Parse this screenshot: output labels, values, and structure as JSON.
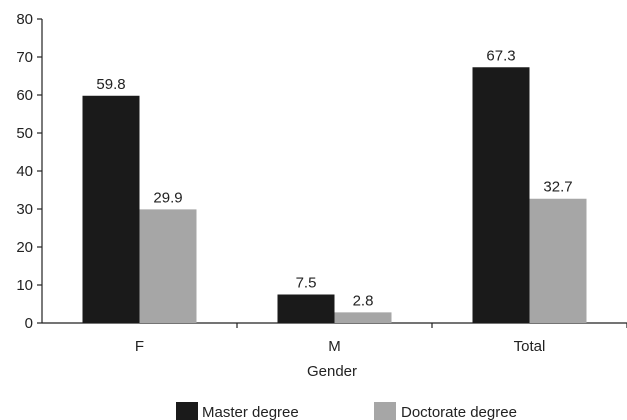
{
  "chart_data": {
    "type": "bar",
    "categories": [
      "F",
      "M",
      "Total"
    ],
    "series": [
      {
        "name": "Master degree",
        "values": [
          59.8,
          7.5,
          67.3
        ],
        "color": "#1a1a1a"
      },
      {
        "name": "Doctorate degree",
        "values": [
          29.9,
          2.8,
          32.7
        ],
        "color": "#a6a6a6"
      }
    ],
    "data_labels": [
      [
        "59.8",
        "7.5",
        "67.3"
      ],
      [
        "29.9",
        "2.8",
        "32.7"
      ]
    ],
    "xlabel": "Gender",
    "ylabel": "",
    "ylim": [
      0,
      80
    ],
    "yticks": [
      0,
      10,
      20,
      30,
      40,
      50,
      60,
      70,
      80
    ],
    "grid": false,
    "legend_position": "bottom-center"
  }
}
